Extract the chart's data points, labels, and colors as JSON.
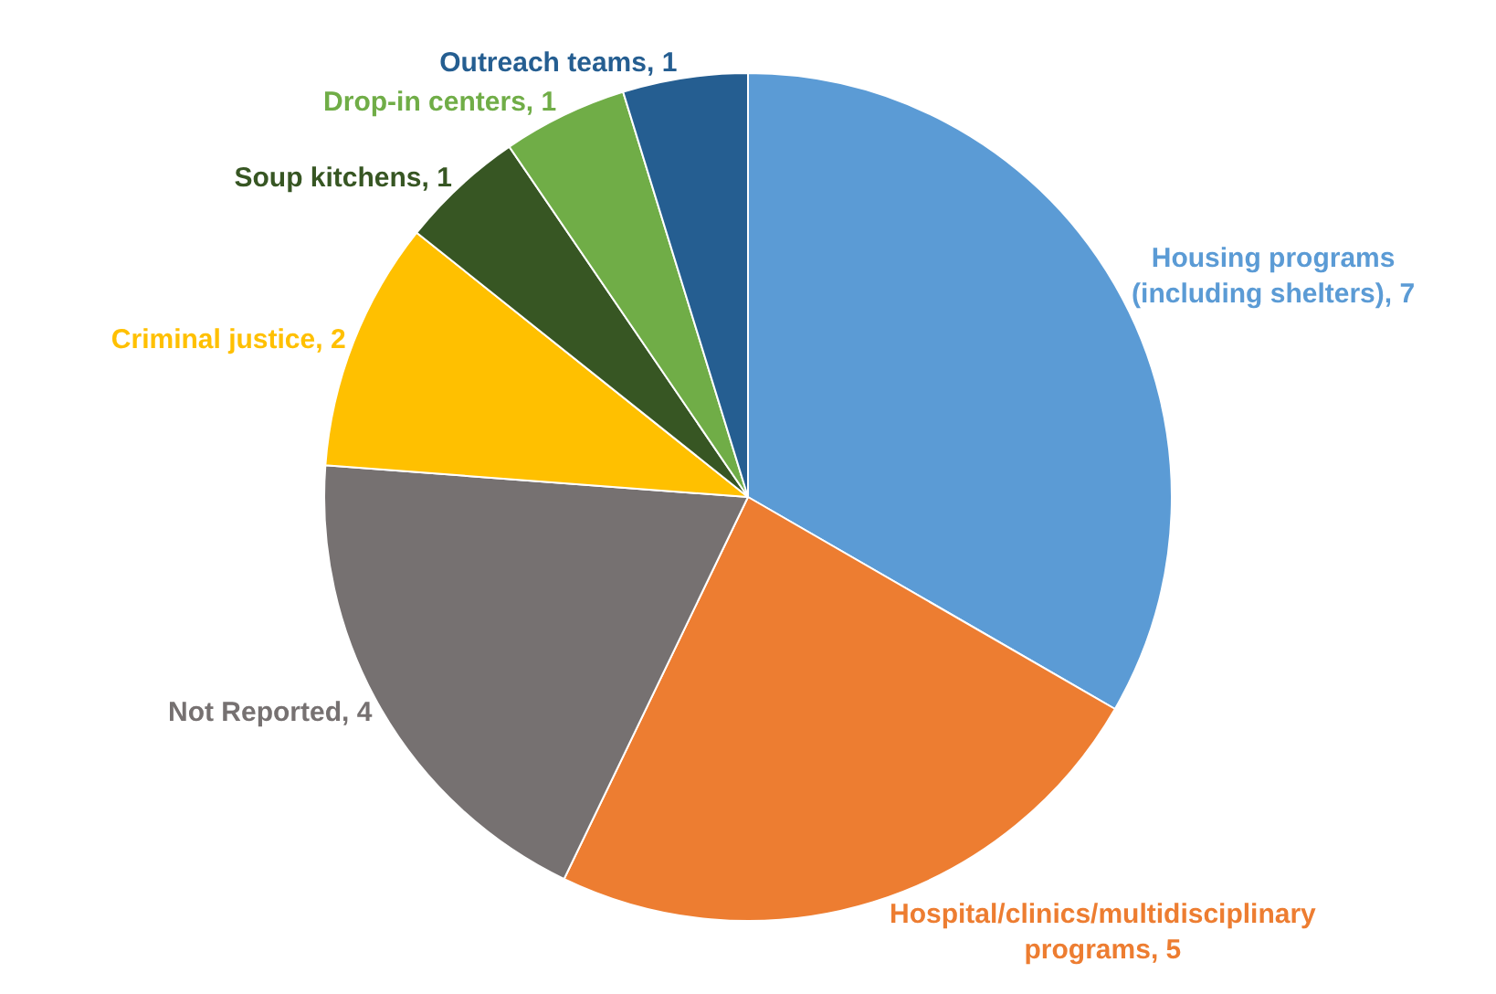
{
  "chart_data": {
    "type": "pie",
    "categories": [
      "Housing programs (including shelters), 7",
      "Hospital/clinics/multidisciplinary programs, 5",
      "Not Reported, 4",
      "Criminal justice, 2",
      "Soup kitchens, 1",
      "Drop-in centers, 1",
      "Outreach teams, 1"
    ],
    "values": [
      7,
      5,
      4,
      2,
      1,
      1,
      1
    ],
    "colors": [
      "#5b9bd5",
      "#ed7d31",
      "#767171",
      "#ffc000",
      "#375623",
      "#70ad47",
      "#255e91"
    ],
    "legend": false
  }
}
